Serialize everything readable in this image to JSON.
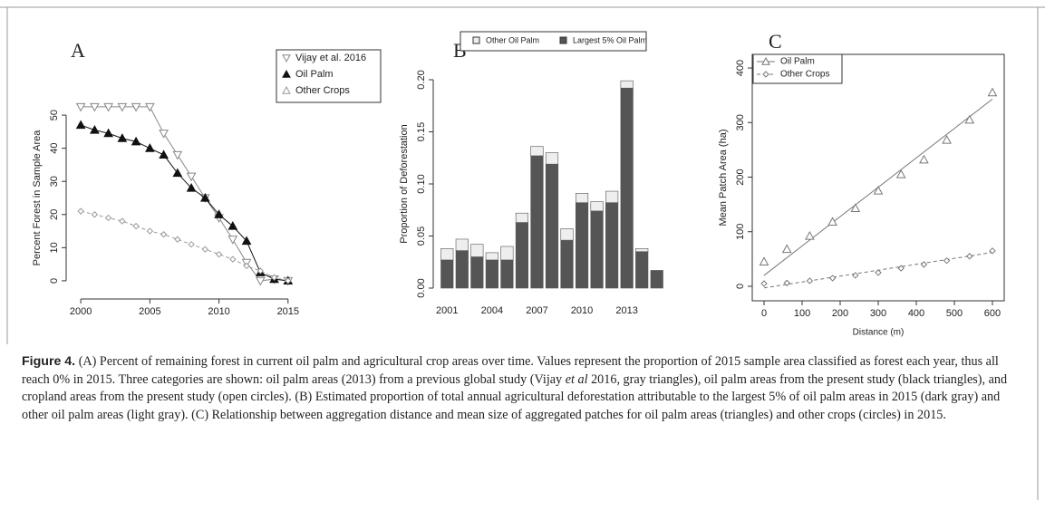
{
  "chart_data": [
    {
      "type": "line",
      "panel": "A",
      "y_label": "Percent Forest in Sample Area",
      "x": [
        2000,
        2001,
        2002,
        2003,
        2004,
        2005,
        2006,
        2007,
        2008,
        2009,
        2010,
        2011,
        2012,
        2013,
        2014,
        2015
      ],
      "xlim": [
        1999.4,
        2015.8
      ],
      "xticks": [
        2000,
        2005,
        2010,
        2015
      ],
      "ylim": [
        -3.3,
        53.3
      ],
      "yticks": [
        0,
        10,
        20,
        30,
        40,
        50
      ],
      "legend": "upper right",
      "series": [
        {
          "name": "Vijay et al. 2016",
          "color": "#888888",
          "marker": "triangle-down",
          "filled": false,
          "values": [
            52.5,
            52.5,
            52.5,
            52.5,
            52.5,
            52.5,
            44.5,
            38,
            31.5,
            25,
            19,
            12.5,
            5.5,
            0,
            0.5,
            0
          ]
        },
        {
          "name": "Oil Palm",
          "color": "#111111",
          "marker": "triangle",
          "filled": true,
          "values": [
            47,
            45.5,
            44.5,
            43,
            42,
            40,
            38,
            32.5,
            28,
            25,
            20,
            16.5,
            12,
            2.5,
            0.5,
            0
          ]
        },
        {
          "name": "Other Crops",
          "color": "#999999",
          "marker": "diamond",
          "legend_marker": "triangle",
          "filled": false,
          "dashed": true,
          "values": [
            21,
            20,
            19,
            18,
            16.5,
            15,
            14,
            12.5,
            11,
            9.5,
            8,
            6.5,
            4.5,
            3,
            1,
            0
          ]
        }
      ]
    },
    {
      "type": "bar",
      "stacked": true,
      "panel": "B",
      "y_label": "Proportion of Deforestation",
      "categories": [
        "2001",
        null,
        null,
        "2004",
        null,
        null,
        "2007",
        null,
        null,
        "2010",
        null,
        null,
        "2013",
        null,
        null
      ],
      "ylim": [
        0,
        0.2
      ],
      "yticks": [
        {
          "value": 0,
          "label": "0.00"
        },
        {
          "value": 0.05,
          "label": "0.05"
        },
        {
          "value": 0.1,
          "label": "0.10"
        },
        {
          "value": 0.15,
          "label": "0.15"
        },
        {
          "value": 0.2,
          "label": "0.20"
        }
      ],
      "legend": "top",
      "series": [
        {
          "name": "Other Oil Palm",
          "color": "#eeeeee",
          "values": [
            0.011,
            0.011,
            0.012,
            0.007,
            0.013,
            0.009,
            0.009,
            0.011,
            0.011,
            0.009,
            0.009,
            0.011,
            0.007,
            0.003,
            0
          ]
        },
        {
          "name": "Largest 5% Oil Palm",
          "color": "#555555",
          "values": [
            0.027,
            0.036,
            0.03,
            0.027,
            0.027,
            0.063,
            0.127,
            0.119,
            0.046,
            0.082,
            0.074,
            0.082,
            0.192,
            0.035,
            0.017
          ]
        }
      ]
    },
    {
      "type": "scatter",
      "panel": "C",
      "x_label": "Distance (m)",
      "y_label": "Mean Patch Area (ha)",
      "box": true,
      "x": [
        0,
        60,
        120,
        180,
        240,
        300,
        360,
        420,
        480,
        540,
        600
      ],
      "xlim": [
        -31,
        631
      ],
      "xticks": [
        0,
        100,
        200,
        300,
        400,
        500,
        600
      ],
      "ylim": [
        -26.6,
        425
      ],
      "yticks": [
        0,
        100,
        200,
        300,
        400
      ],
      "legend": "upper left",
      "series": [
        {
          "name": "Oil Palm",
          "color": "#777777",
          "marker": "triangle",
          "filled": false,
          "values": [
            45,
            68,
            92,
            118,
            143,
            175,
            205,
            232,
            268,
            305,
            355
          ],
          "fit": {
            "x": [
              0,
              600
            ],
            "y": [
              20,
              343
            ]
          }
        },
        {
          "name": "Other Crops",
          "color": "#777777",
          "marker": "diamond",
          "filled": false,
          "dashed": true,
          "values": [
            5,
            6,
            10,
            15,
            20,
            25,
            33,
            40,
            47,
            55,
            65
          ],
          "fit": {
            "x": [
              0,
              600
            ],
            "y": [
              -3,
              62
            ]
          }
        }
      ]
    }
  ],
  "caption": {
    "label": "Figure 4.",
    "parts": [
      " (A) Percent of remaining forest in current oil palm and agricultural crop areas over time. Values represent the proportion of 2015 sample area classified as forest each year, thus all reach 0% in 2015. Three categories are shown: oil palm areas (2013) from a previous global study (Vijay ",
      "et al",
      " 2016, gray triangles), oil palm areas from the present study (black triangles), and cropland areas from the present study (open circles). (B) Estimated proportion of total annual agricultural deforestation attributable to the largest 5% of oil palm areas in 2015 (dark gray) and other oil palm areas (light gray). (C) Relationship between aggregation distance and mean size of aggregated patches for oil palm areas (triangles) and other crops (circles) in 2015."
    ]
  }
}
